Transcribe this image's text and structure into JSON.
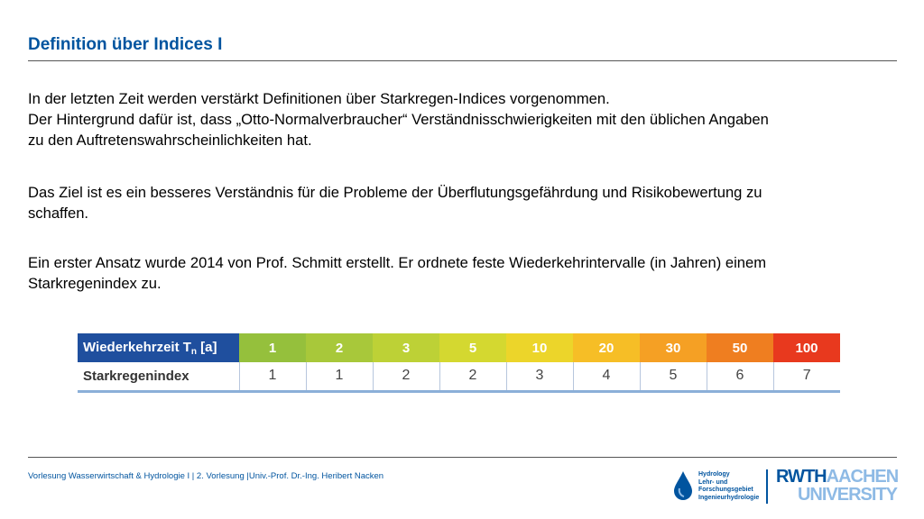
{
  "slide": {
    "title": "Definition über Indices I"
  },
  "paragraphs": {
    "p1_l1": "In der letzten Zeit werden verstärkt Definitionen über Starkregen-Indices vorgenommen.",
    "p1_l2": "Der Hintergrund dafür ist, dass „Otto-Normalverbraucher“ Verständnisschwierigkeiten mit den üblichen Angaben",
    "p1_l3": "zu den Auftretenswahrscheinlichkeiten hat.",
    "p2_l1": "Das Ziel ist es ein besseres Verständnis für die Probleme der Überflutungsgefährdung und Risikobewertung zu",
    "p2_l2": "schaffen.",
    "p3_l1": "Ein erster Ansatz wurde 2014 von Prof. Schmitt erstellt. Er ordnete feste Wiederkehrintervalle (in Jahren) einem",
    "p3_l2": "Starkregenindex zu."
  },
  "table": {
    "header_label_main": "Wiederkehrzeit T",
    "header_label_sub": "n",
    "header_label_unit": " [a]",
    "row_label": "Starkregenindex",
    "return_periods": [
      "1",
      "2",
      "3",
      "5",
      "10",
      "20",
      "30",
      "50",
      "100"
    ],
    "indices": [
      "1",
      "1",
      "2",
      "2",
      "3",
      "4",
      "5",
      "6",
      "7"
    ],
    "header_colors": [
      "#95c03c",
      "#a8c83a",
      "#bdd136",
      "#d4d830",
      "#ecd52a",
      "#f6be26",
      "#f5a024",
      "#ef7e20",
      "#e8391e"
    ],
    "label_bg": "#1f4f9e"
  },
  "footer": {
    "text": "Vorlesung Wasserwirtschaft & Hydrologie I | 2. Vorlesung |Univ.-Prof. Dr.-Ing. Heribert Nacken"
  },
  "logos": {
    "hydro_l1": "Hydrology",
    "hydro_l2": "Lehr- und",
    "hydro_l3": "Forschungsgebiet",
    "hydro_l4": "Ingenieurhydrologie",
    "rwth_part1": "RWTH",
    "rwth_part2": "AACHEN",
    "rwth_part3": "UNIVERSITY",
    "brand_blue": "#00549f",
    "brand_light": "#8ebae5"
  }
}
